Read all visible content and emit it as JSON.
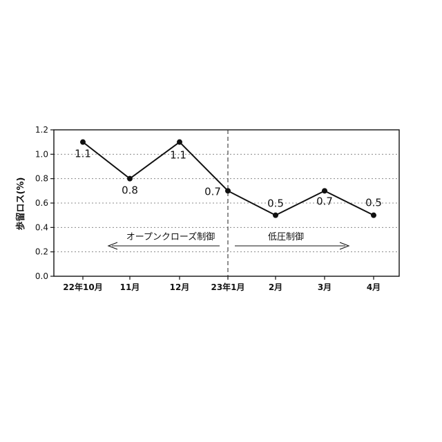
{
  "chart_data": {
    "type": "line",
    "ylabel": "歩留ロス(%)",
    "ylim": [
      0,
      1.2
    ],
    "yticks": [
      "0.0",
      "0.2",
      "0.4",
      "0.6",
      "0.8",
      "1.0",
      "1.2"
    ],
    "categories": [
      "22年10月",
      "11月",
      "12月",
      "23年1月",
      "2月",
      "3月",
      "4月"
    ],
    "values": [
      1.1,
      0.8,
      1.1,
      0.7,
      0.5,
      0.7,
      0.5
    ],
    "data_labels": [
      "1.1",
      "0.8",
      "1.1",
      "0.7",
      "0.5",
      "0.7",
      "0.5"
    ],
    "grid": "horizontal-dotted",
    "annotations": {
      "left_period": "オープンクローズ制御",
      "right_period": "低圧制御"
    },
    "colors": {
      "line": "#111111",
      "grid": "#888888",
      "axis": "#111111"
    }
  }
}
